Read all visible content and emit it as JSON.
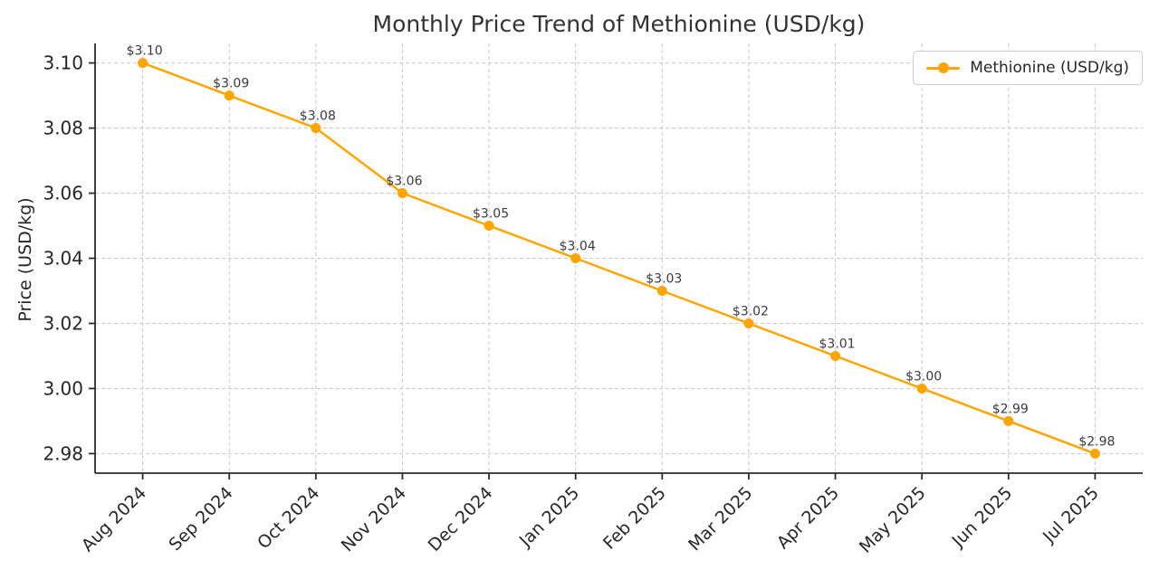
{
  "chart_data": {
    "type": "line",
    "title": "Monthly Price Trend of Methionine (USD/kg)",
    "xlabel": "",
    "ylabel": "Price (USD/kg)",
    "categories": [
      "Aug 2024",
      "Sep 2024",
      "Oct 2024",
      "Nov 2024",
      "Dec 2024",
      "Jan 2025",
      "Feb 2025",
      "Mar 2025",
      "Apr 2025",
      "May 2025",
      "Jun 2025",
      "Jul 2025"
    ],
    "series": [
      {
        "name": "Methionine (USD/kg)",
        "values": [
          3.1,
          3.09,
          3.08,
          3.06,
          3.05,
          3.04,
          3.03,
          3.02,
          3.01,
          3.0,
          2.99,
          2.98
        ],
        "point_labels": [
          "$3.10",
          "$3.09",
          "$3.08",
          "$3.06",
          "$3.05",
          "$3.04",
          "$3.03",
          "$3.02",
          "$3.01",
          "$3.00",
          "$2.99",
          "$2.98"
        ],
        "color": "#FFA500",
        "marker": "circle"
      }
    ],
    "yticks": [
      2.98,
      3.0,
      3.02,
      3.04,
      3.06,
      3.08,
      3.1
    ],
    "ytick_labels": [
      "2.98",
      "3.00",
      "3.02",
      "3.04",
      "3.06",
      "3.08",
      "3.10"
    ],
    "ylim": [
      2.974,
      3.106
    ],
    "grid": true,
    "grid_style": "dashed",
    "legend_position": "upper right",
    "legend_entries": [
      "Methionine (USD/kg)"
    ]
  },
  "colors": {
    "line": "#FFA500",
    "grid": "#c9c9c9",
    "axis": "#2b2b2b",
    "tick_text": "#262626",
    "title_text": "#333333",
    "point_label_text": "#3a3a3a",
    "legend_border": "#cccccc",
    "background": "#ffffff"
  }
}
